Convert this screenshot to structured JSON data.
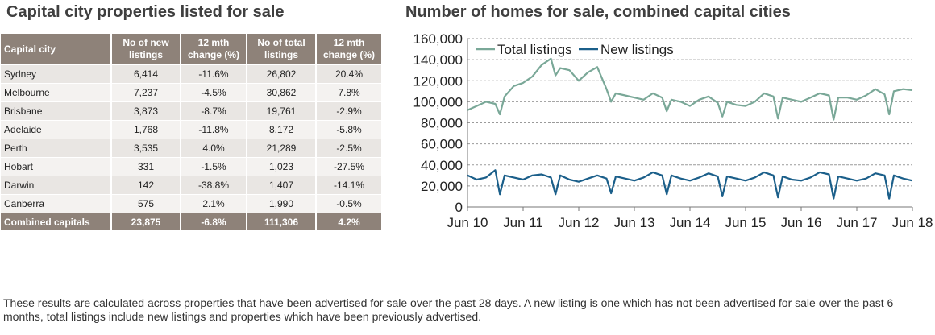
{
  "left_title": "Capital city properties listed for sale",
  "right_title": "Number of homes for sale, combined capital cities",
  "table": {
    "headers": [
      "Capital city",
      "No of new listings",
      "12 mth change (%)",
      "No of total listings",
      "12 mth change (%)"
    ],
    "rows": [
      [
        "Sydney",
        "6,414",
        "-11.6%",
        "26,802",
        "20.4%"
      ],
      [
        "Melbourne",
        "7,237",
        "-4.5%",
        "30,862",
        "7.8%"
      ],
      [
        "Brisbane",
        "3,873",
        "-8.7%",
        "19,761",
        "-2.9%"
      ],
      [
        "Adelaide",
        "1,768",
        "-11.8%",
        "8,172",
        "-5.8%"
      ],
      [
        "Perth",
        "3,535",
        "4.0%",
        "21,289",
        "-2.5%"
      ],
      [
        "Hobart",
        "331",
        "-1.5%",
        "1,023",
        "-27.5%"
      ],
      [
        "Darwin",
        "142",
        "-38.8%",
        "1,407",
        "-14.1%"
      ],
      [
        "Canberra",
        "575",
        "2.1%",
        "1,990",
        "-0.5%"
      ]
    ],
    "total": [
      "Combined capitals",
      "23,875",
      "-6.8%",
      "111,306",
      "4.2%"
    ]
  },
  "footnote": "These results are calculated across properties that have been advertised for sale over the past 28 days.  A new listing is one which has not been advertised for sale over the past 6 months, total listings include new listings and properties which have been previously advertised.",
  "chart_data": {
    "type": "line",
    "title": "Number of homes for sale, combined capital cities",
    "xlabel": "",
    "ylabel": "",
    "ylim": [
      0,
      160000
    ],
    "yticks": [
      "0",
      "20,000",
      "40,000",
      "60,000",
      "80,000",
      "100,000",
      "120,000",
      "140,000",
      "160,000"
    ],
    "xticks": [
      "Jun 10",
      "Jun 11",
      "Jun 12",
      "Jun 13",
      "Jun 14",
      "Jun 15",
      "Jun 16",
      "Jun 17",
      "Jun 18"
    ],
    "grid": true,
    "legend": "top-left",
    "x": [
      "2010-06",
      "2010-08",
      "2010-10",
      "2010-12",
      "2011-01",
      "2011-02",
      "2011-04",
      "2011-06",
      "2011-08",
      "2011-10",
      "2011-12",
      "2012-01",
      "2012-02",
      "2012-04",
      "2012-06",
      "2012-08",
      "2012-10",
      "2012-12",
      "2013-01",
      "2013-02",
      "2013-04",
      "2013-06",
      "2013-08",
      "2013-10",
      "2013-12",
      "2014-01",
      "2014-02",
      "2014-04",
      "2014-06",
      "2014-08",
      "2014-10",
      "2014-12",
      "2015-01",
      "2015-02",
      "2015-04",
      "2015-06",
      "2015-08",
      "2015-10",
      "2015-12",
      "2016-01",
      "2016-02",
      "2016-04",
      "2016-06",
      "2016-08",
      "2016-10",
      "2016-12",
      "2017-01",
      "2017-02",
      "2017-04",
      "2017-06",
      "2017-08",
      "2017-10",
      "2017-12",
      "2018-01",
      "2018-02",
      "2018-04",
      "2018-06"
    ],
    "series": [
      {
        "name": "Total listings",
        "color": "#7aa898",
        "values": [
          92000,
          96000,
          100000,
          98000,
          88000,
          105000,
          115000,
          118000,
          124000,
          135000,
          141000,
          125000,
          132000,
          130000,
          120000,
          128000,
          133000,
          112000,
          100000,
          108000,
          106000,
          104000,
          102000,
          108000,
          104000,
          91000,
          102000,
          100000,
          96000,
          102000,
          105000,
          99000,
          86000,
          100000,
          97000,
          96000,
          100000,
          108000,
          105000,
          84000,
          104000,
          102000,
          100000,
          104000,
          108000,
          106000,
          83000,
          104000,
          104000,
          102000,
          106000,
          112000,
          107000,
          88000,
          110000,
          112000,
          111000
        ]
      },
      {
        "name": "New listings",
        "color": "#1b5f8a",
        "values": [
          30000,
          26000,
          28000,
          35000,
          12000,
          30000,
          28000,
          26000,
          30000,
          31000,
          28000,
          12000,
          30000,
          26000,
          24000,
          27000,
          30000,
          27000,
          13000,
          29000,
          27000,
          25000,
          28000,
          33000,
          30000,
          12000,
          30000,
          27000,
          25000,
          28000,
          32000,
          29000,
          10000,
          29000,
          27000,
          25000,
          28000,
          33000,
          30000,
          9000,
          29000,
          26000,
          25000,
          28000,
          33000,
          31000,
          8000,
          29000,
          27000,
          25000,
          27000,
          32000,
          30000,
          8000,
          30000,
          27000,
          25000
        ]
      }
    ]
  }
}
